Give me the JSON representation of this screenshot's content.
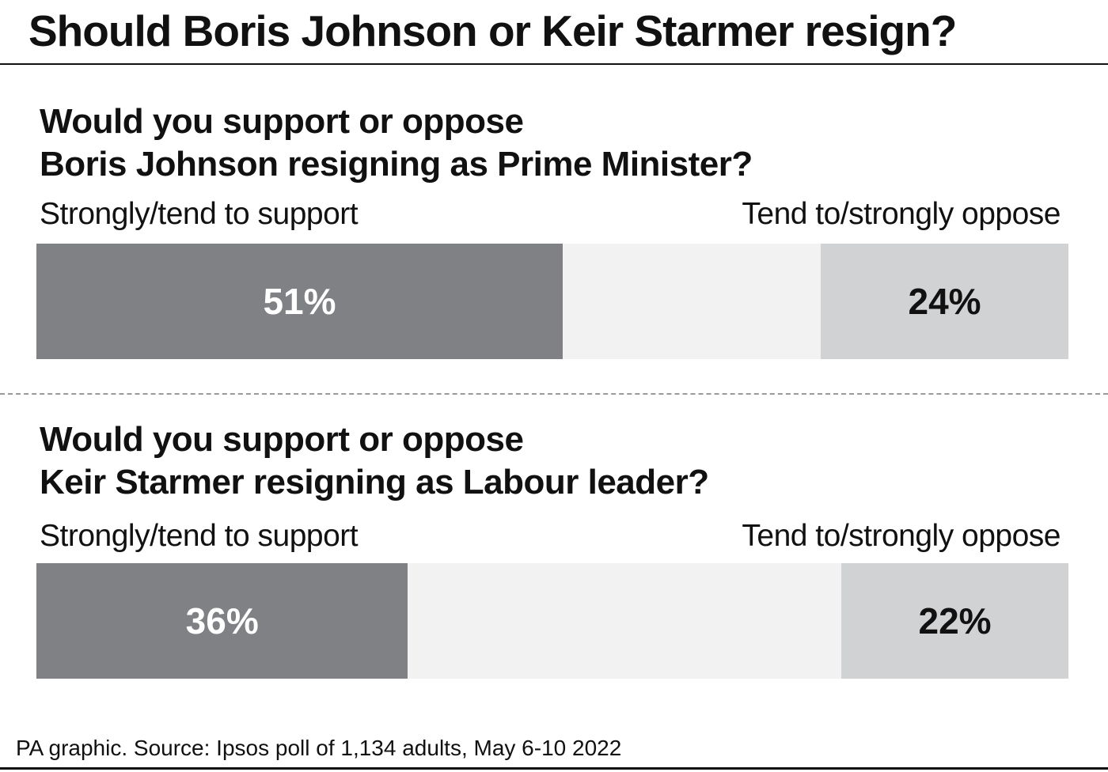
{
  "title": "Should Boris Johnson or Keir Starmer resign?",
  "footer": "PA graphic. Source: Ipsos poll of 1,134 adults, May 6-10 2022",
  "chart_data": [
    {
      "type": "bar",
      "orientation": "horizontal-stacked",
      "question_lines": [
        "Would you support or oppose",
        "Boris Johnson resigning as Prime Minister?"
      ],
      "categories": [
        "Strongly/tend to support",
        "Tend to/strongly oppose"
      ],
      "values": [
        51,
        24
      ],
      "labels": [
        "51%",
        "24%"
      ],
      "unit": "%",
      "xlim": [
        0,
        100
      ],
      "colors": [
        "#808184",
        "#d1d2d4"
      ]
    },
    {
      "type": "bar",
      "orientation": "horizontal-stacked",
      "question_lines": [
        "Would you support or oppose",
        "Keir Starmer resigning as Labour leader?"
      ],
      "categories": [
        "Strongly/tend to support",
        "Tend to/strongly oppose"
      ],
      "values": [
        36,
        22
      ],
      "labels": [
        "36%",
        "22%"
      ],
      "unit": "%",
      "xlim": [
        0,
        100
      ],
      "colors": [
        "#808184",
        "#d1d2d4"
      ]
    }
  ]
}
